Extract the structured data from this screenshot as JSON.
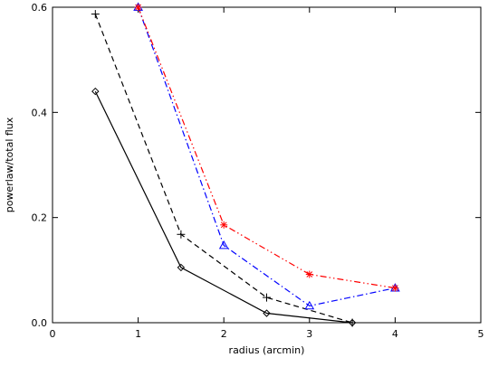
{
  "chart_data": {
    "type": "line",
    "title": "",
    "xlabel": "radius (arcmin)",
    "ylabel": "powerlaw/total flux",
    "xlim": [
      0,
      5
    ],
    "ylim": [
      0,
      0.6
    ],
    "xticks": [
      0,
      1,
      2,
      3,
      4,
      5
    ],
    "xtick_labels": [
      "0",
      "1",
      "2",
      "3",
      "4",
      "5"
    ],
    "yticks": [
      0.0,
      0.2,
      0.4,
      0.6
    ],
    "ytick_labels": [
      "0.0",
      "0.2",
      "0.4",
      "0.6"
    ],
    "grid": false,
    "legend": false,
    "series": [
      {
        "color": "#000000",
        "line_style": "solid",
        "marker": "diamond",
        "x": [
          0.5,
          1.5,
          2.5,
          3.5
        ],
        "y": [
          0.44,
          0.105,
          0.018,
          0.0
        ]
      },
      {
        "color": "#000000",
        "line_style": "dashed",
        "marker": "plus",
        "x": [
          0.5,
          1.5,
          2.5,
          3.5
        ],
        "y": [
          0.587,
          0.168,
          0.048,
          0.0
        ]
      },
      {
        "color": "#0000ff",
        "line_style": "dash-dot",
        "marker": "triangle",
        "x": [
          1,
          2,
          3,
          4
        ],
        "y": [
          0.6,
          0.147,
          0.032,
          0.066
        ]
      },
      {
        "color": "#ff0000",
        "line_style": "dash-dot-dot",
        "marker": "asterisk",
        "x": [
          1,
          2,
          3,
          4
        ],
        "y": [
          0.6,
          0.186,
          0.092,
          0.066
        ]
      }
    ]
  }
}
